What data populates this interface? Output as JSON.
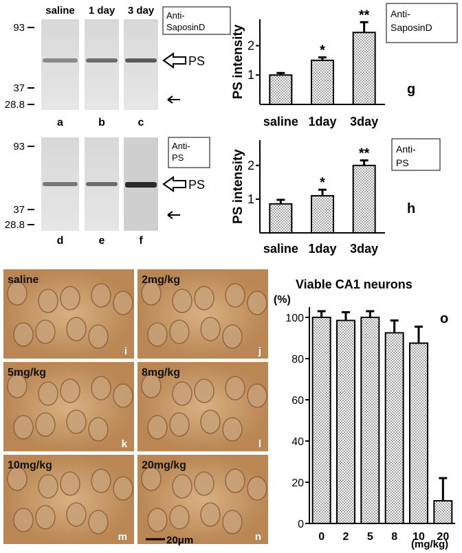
{
  "chart_data": [
    {
      "type": "bar",
      "ylabel": "PS intensity",
      "antibody": [
        "Anti-",
        "SaposinD"
      ],
      "panel": "g",
      "categories": [
        "saline",
        "1day",
        "3day"
      ],
      "values": [
        1.0,
        1.5,
        2.45
      ],
      "errors": [
        0.07,
        0.1,
        0.35
      ],
      "significance": [
        null,
        "*",
        "**"
      ],
      "ylim": [
        0,
        2.9
      ],
      "yticks": [
        1,
        2
      ],
      "grid": false
    },
    {
      "type": "bar",
      "ylabel": "PS intensity",
      "antibody": [
        "Anti-",
        "PS"
      ],
      "panel": "h",
      "categories": [
        "saline",
        "1day",
        "3day"
      ],
      "values": [
        0.86,
        1.1,
        2.0
      ],
      "errors": [
        0.12,
        0.18,
        0.15
      ],
      "significance": [
        null,
        "*",
        "**"
      ],
      "ylim": [
        0,
        2.75
      ],
      "yticks": [
        1,
        2
      ],
      "grid": false
    },
    {
      "type": "bar",
      "title": "Viable CA1 neurons",
      "y_unit": "(%)",
      "x_unit": "(mg/kg)",
      "panel": "o",
      "categories": [
        "0",
        "2",
        "5",
        "8",
        "10",
        "20"
      ],
      "values": [
        100,
        98.5,
        100,
        92.5,
        87.5,
        11
      ],
      "errors": [
        3,
        4,
        3,
        6,
        8,
        11
      ],
      "ylim": [
        0,
        105
      ],
      "yticks": [
        0,
        20,
        40,
        60,
        80,
        100
      ],
      "grid": false
    }
  ],
  "blots": [
    {
      "lanes": [
        "saline",
        "1 day",
        "3 day"
      ],
      "lane_panels": [
        "a",
        "b",
        "c"
      ],
      "markers": [
        93,
        37,
        28.8
      ],
      "band": "PS"
    },
    {
      "lane_panels": [
        "d",
        "e",
        "f"
      ],
      "markers": [
        93,
        37,
        28.8
      ],
      "band": "PS"
    }
  ],
  "micrographs": [
    {
      "label": "saline",
      "panel": "i"
    },
    {
      "label": "2mg/kg",
      "panel": "j"
    },
    {
      "label": "5mg/kg",
      "panel": "k"
    },
    {
      "label": "8mg/kg",
      "panel": "l"
    },
    {
      "label": "10mg/kg",
      "panel": "m"
    },
    {
      "label": "20mg/kg",
      "panel": "n"
    }
  ],
  "scale_bar": "20μm"
}
